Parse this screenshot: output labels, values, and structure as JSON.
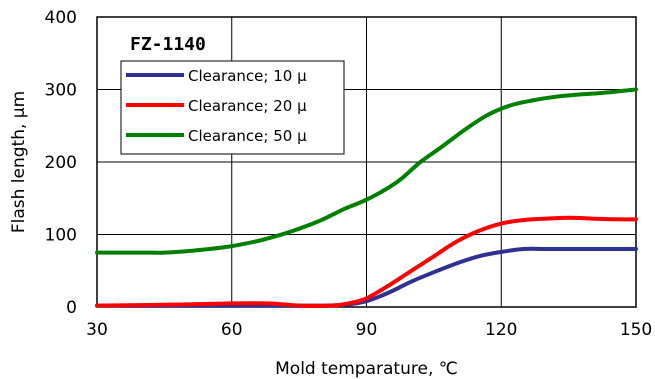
{
  "chart_data": {
    "type": "line",
    "title": "FZ-1140",
    "xlabel": "Mold temparature, ℃",
    "ylabel": "Flash length, μm",
    "xlim": [
      30,
      150
    ],
    "ylim": [
      0,
      400
    ],
    "xticks": [
      30,
      60,
      90,
      120,
      150
    ],
    "yticks": [
      0,
      100,
      200,
      300,
      400
    ],
    "xtick_labels": [
      "30",
      "60",
      "90",
      "120",
      "150"
    ],
    "ytick_labels": [
      "0",
      "100",
      "200",
      "300",
      "400"
    ],
    "grid": true,
    "legend_position": "top-left",
    "series": [
      {
        "name": "Clearance; 10 μ",
        "color": "#2e3192",
        "x": [
          30,
          60,
          80,
          85,
          90,
          95,
          100,
          105,
          110,
          115,
          120,
          125,
          130,
          140,
          150
        ],
        "y": [
          2,
          2,
          2,
          3,
          8,
          20,
          35,
          48,
          60,
          70,
          76,
          80,
          80,
          80,
          80
        ]
      },
      {
        "name": "Clearance; 20 μ",
        "color": "#ff0000",
        "x": [
          30,
          45,
          60,
          68,
          75,
          82,
          86,
          90,
          95,
          100,
          105,
          110,
          115,
          120,
          125,
          130,
          135,
          140,
          145,
          150
        ],
        "y": [
          2,
          3,
          5,
          5,
          2,
          2,
          5,
          12,
          30,
          50,
          70,
          90,
          105,
          115,
          120,
          122,
          123,
          122,
          121,
          121
        ]
      },
      {
        "name": "Clearance; 50 μ",
        "color": "#008000",
        "x": [
          30,
          40,
          45,
          50,
          55,
          60,
          65,
          70,
          75,
          80,
          85,
          90,
          95,
          98,
          102,
          107,
          112,
          117,
          122,
          127,
          132,
          137,
          142,
          147,
          150
        ],
        "y": [
          75,
          75,
          75,
          77,
          80,
          84,
          90,
          98,
          108,
          120,
          135,
          148,
          165,
          178,
          200,
          222,
          245,
          265,
          278,
          285,
          290,
          293,
          295,
          298,
          300
        ]
      }
    ]
  }
}
